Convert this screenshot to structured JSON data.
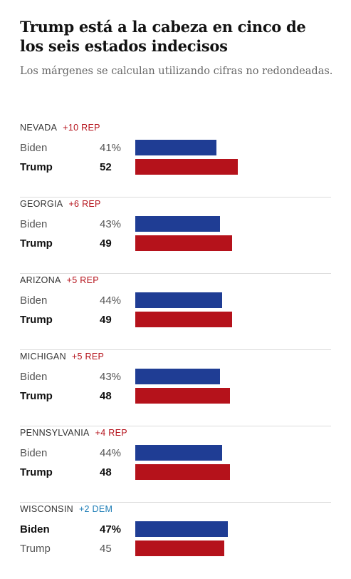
{
  "title": "Trump está a la cabeza en cinco de los seis estados indecisos",
  "subtitle": "Los márgenes se calculan utilizando cifras no redondeadas.",
  "colors": {
    "rep": "#b5121b",
    "dem": "#1f3d94",
    "rep_text": "#b5121b",
    "dem_text": "#1a7bb5"
  },
  "chart_data": {
    "type": "bar",
    "xlim": [
      0,
      100
    ],
    "states": [
      {
        "name": "NEVADA",
        "margin_label": "+10 REP",
        "margin_party": "rep",
        "rows": [
          {
            "candidate": "Biden",
            "value": 41,
            "label": "41%",
            "party": "dem",
            "winner": false
          },
          {
            "candidate": "Trump",
            "value": 52,
            "label": "52",
            "party": "rep",
            "winner": true
          }
        ]
      },
      {
        "name": "GEORGIA",
        "margin_label": "+6 REP",
        "margin_party": "rep",
        "rows": [
          {
            "candidate": "Biden",
            "value": 43,
            "label": "43%",
            "party": "dem",
            "winner": false
          },
          {
            "candidate": "Trump",
            "value": 49,
            "label": "49",
            "party": "rep",
            "winner": true
          }
        ]
      },
      {
        "name": "ARIZONA",
        "margin_label": "+5 REP",
        "margin_party": "rep",
        "rows": [
          {
            "candidate": "Biden",
            "value": 44,
            "label": "44%",
            "party": "dem",
            "winner": false
          },
          {
            "candidate": "Trump",
            "value": 49,
            "label": "49",
            "party": "rep",
            "winner": true
          }
        ]
      },
      {
        "name": "MICHIGAN",
        "margin_label": "+5 REP",
        "margin_party": "rep",
        "rows": [
          {
            "candidate": "Biden",
            "value": 43,
            "label": "43%",
            "party": "dem",
            "winner": false
          },
          {
            "candidate": "Trump",
            "value": 48,
            "label": "48",
            "party": "rep",
            "winner": true
          }
        ]
      },
      {
        "name": "PENNSYLVANIA",
        "margin_label": "+4 REP",
        "margin_party": "rep",
        "rows": [
          {
            "candidate": "Biden",
            "value": 44,
            "label": "44%",
            "party": "dem",
            "winner": false
          },
          {
            "candidate": "Trump",
            "value": 48,
            "label": "48",
            "party": "rep",
            "winner": true
          }
        ]
      },
      {
        "name": "WISCONSIN",
        "margin_label": "+2 DEM",
        "margin_party": "dem",
        "rows": [
          {
            "candidate": "Biden",
            "value": 47,
            "label": "47%",
            "party": "dem",
            "winner": true
          },
          {
            "candidate": "Trump",
            "value": 45,
            "label": "45",
            "party": "rep",
            "winner": false
          }
        ]
      }
    ]
  }
}
